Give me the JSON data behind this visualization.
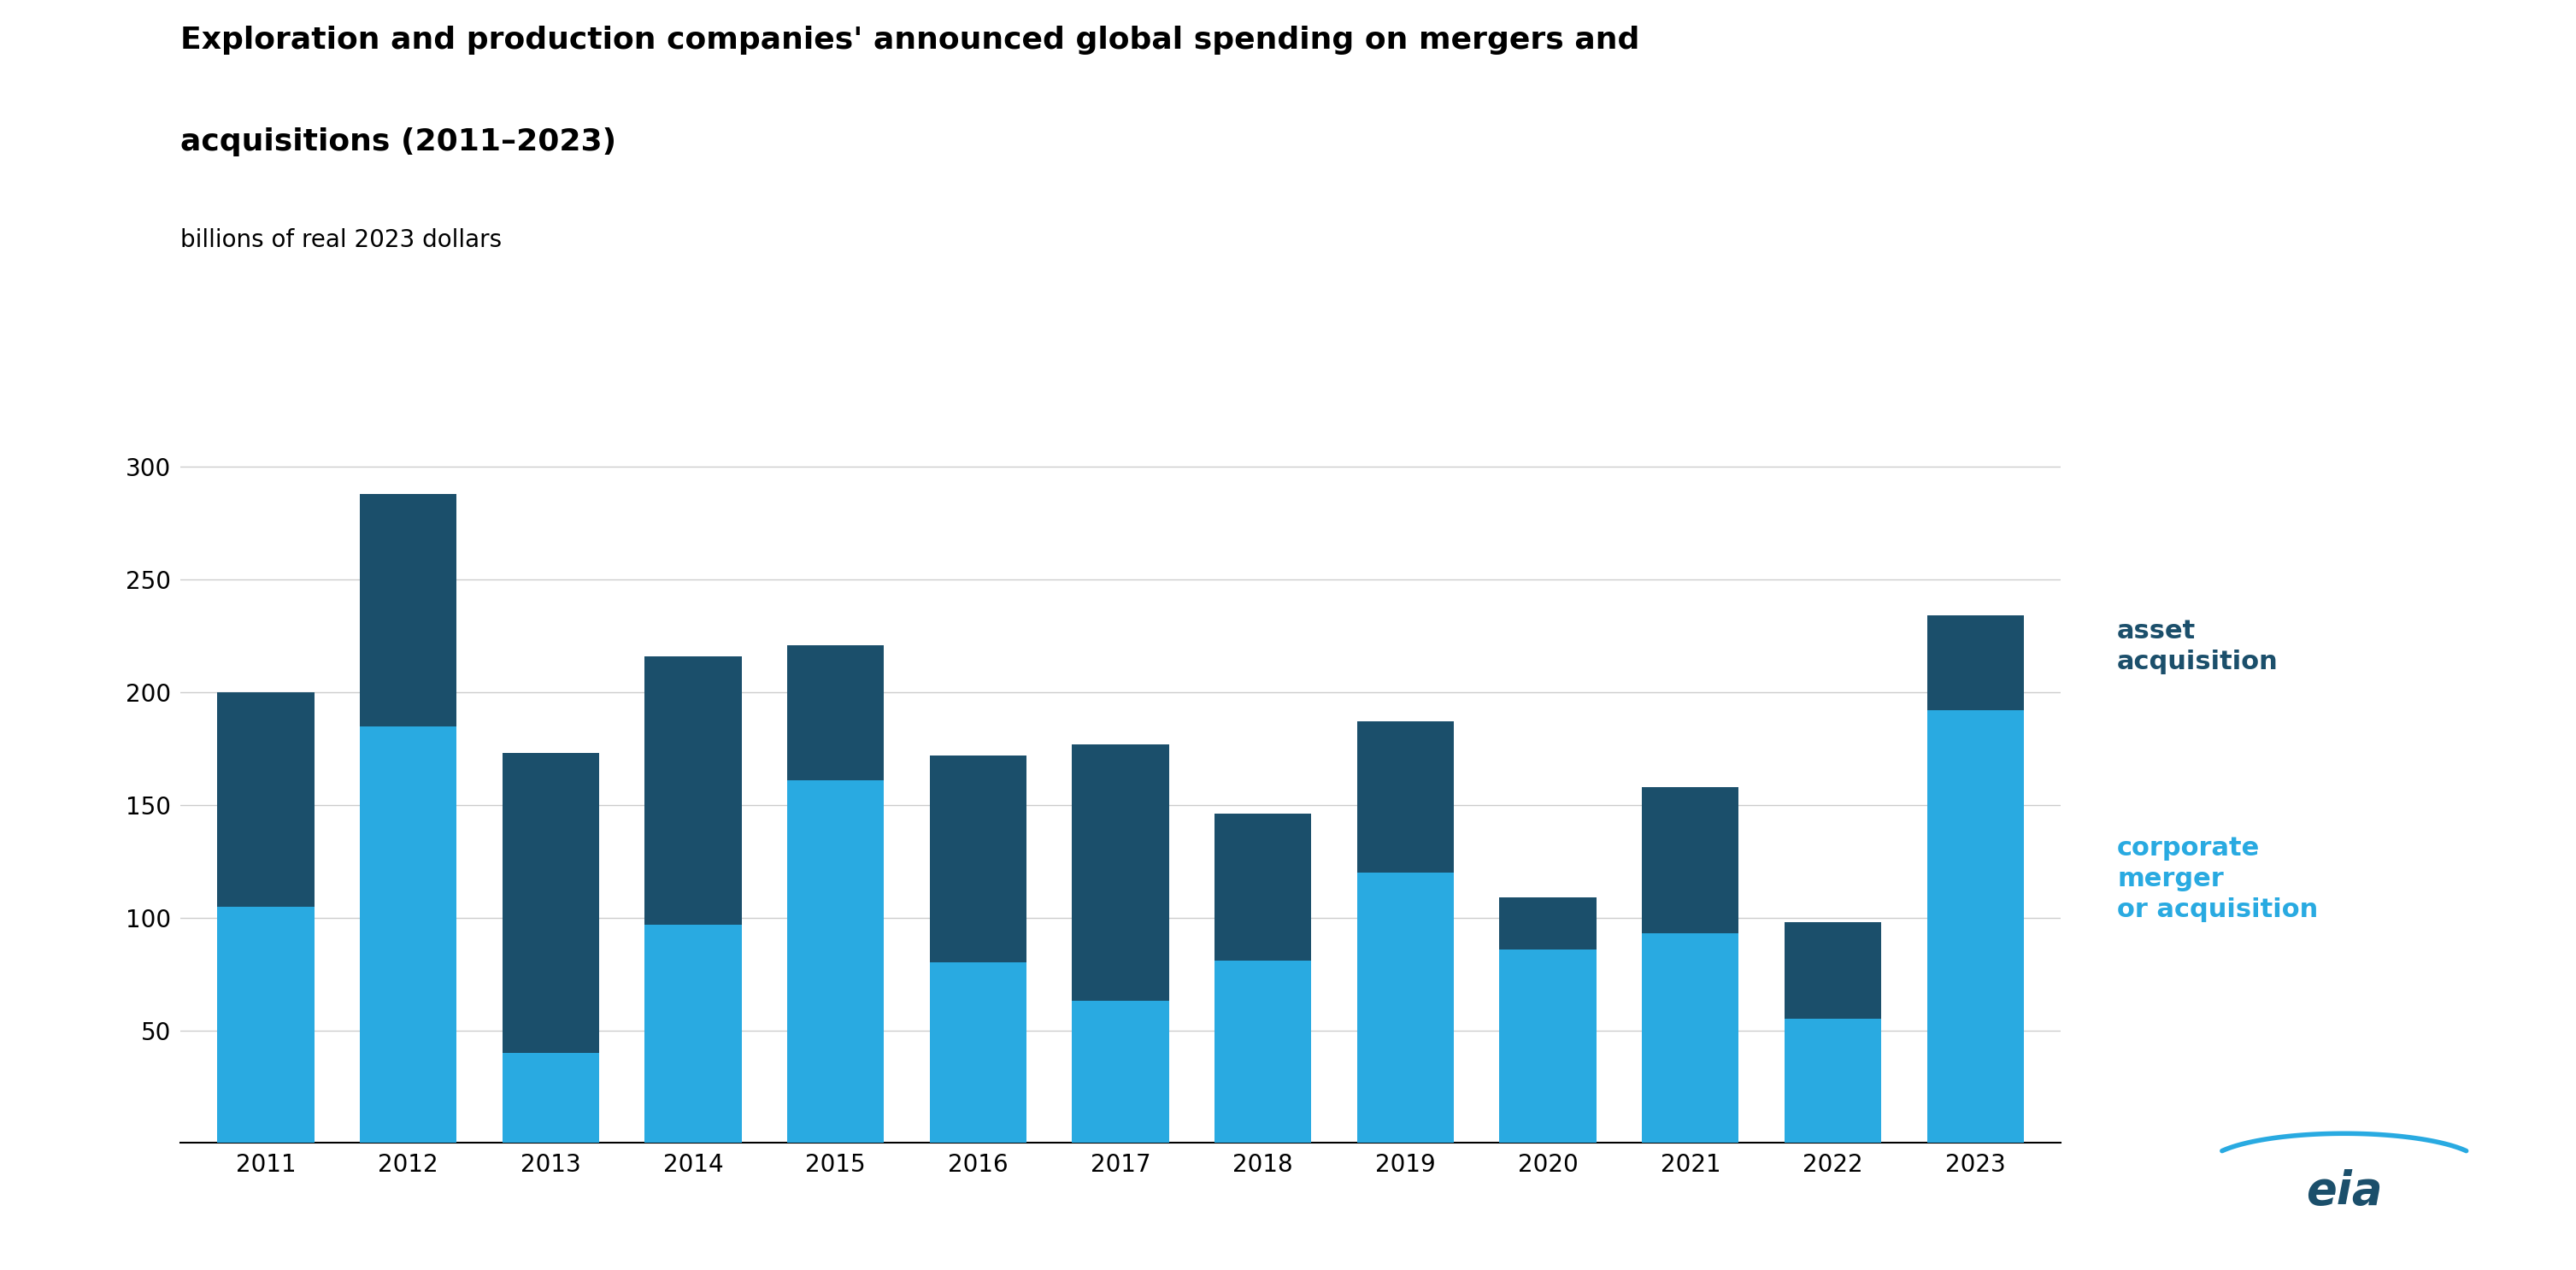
{
  "title_line1": "Exploration and production companies' announced global spending on mergers and",
  "title_line2": "acquisitions (2011–2023)",
  "subtitle": "billions of real 2023 dollars",
  "years": [
    "2011",
    "2012",
    "2013",
    "2014",
    "2015",
    "2016",
    "2017",
    "2018",
    "2019",
    "2020",
    "2021",
    "2022",
    "2023"
  ],
  "corporate_merger": [
    105,
    185,
    40,
    97,
    161,
    80,
    63,
    81,
    120,
    86,
    93,
    55,
    192
  ],
  "asset_acquisition": [
    95,
    103,
    133,
    119,
    60,
    92,
    114,
    65,
    67,
    23,
    65,
    43,
    42
  ],
  "color_corporate": "#29aae1",
  "color_asset": "#1b4f6b",
  "background_color": "#ffffff",
  "ylim": [
    0,
    310
  ],
  "yticks": [
    0,
    50,
    100,
    150,
    200,
    250,
    300
  ],
  "legend_asset": "asset\nacquisition",
  "legend_corporate": "corporate\nmerger\nor acquisition",
  "title_fontsize": 26,
  "subtitle_fontsize": 20,
  "tick_fontsize": 20,
  "legend_fontsize": 22
}
